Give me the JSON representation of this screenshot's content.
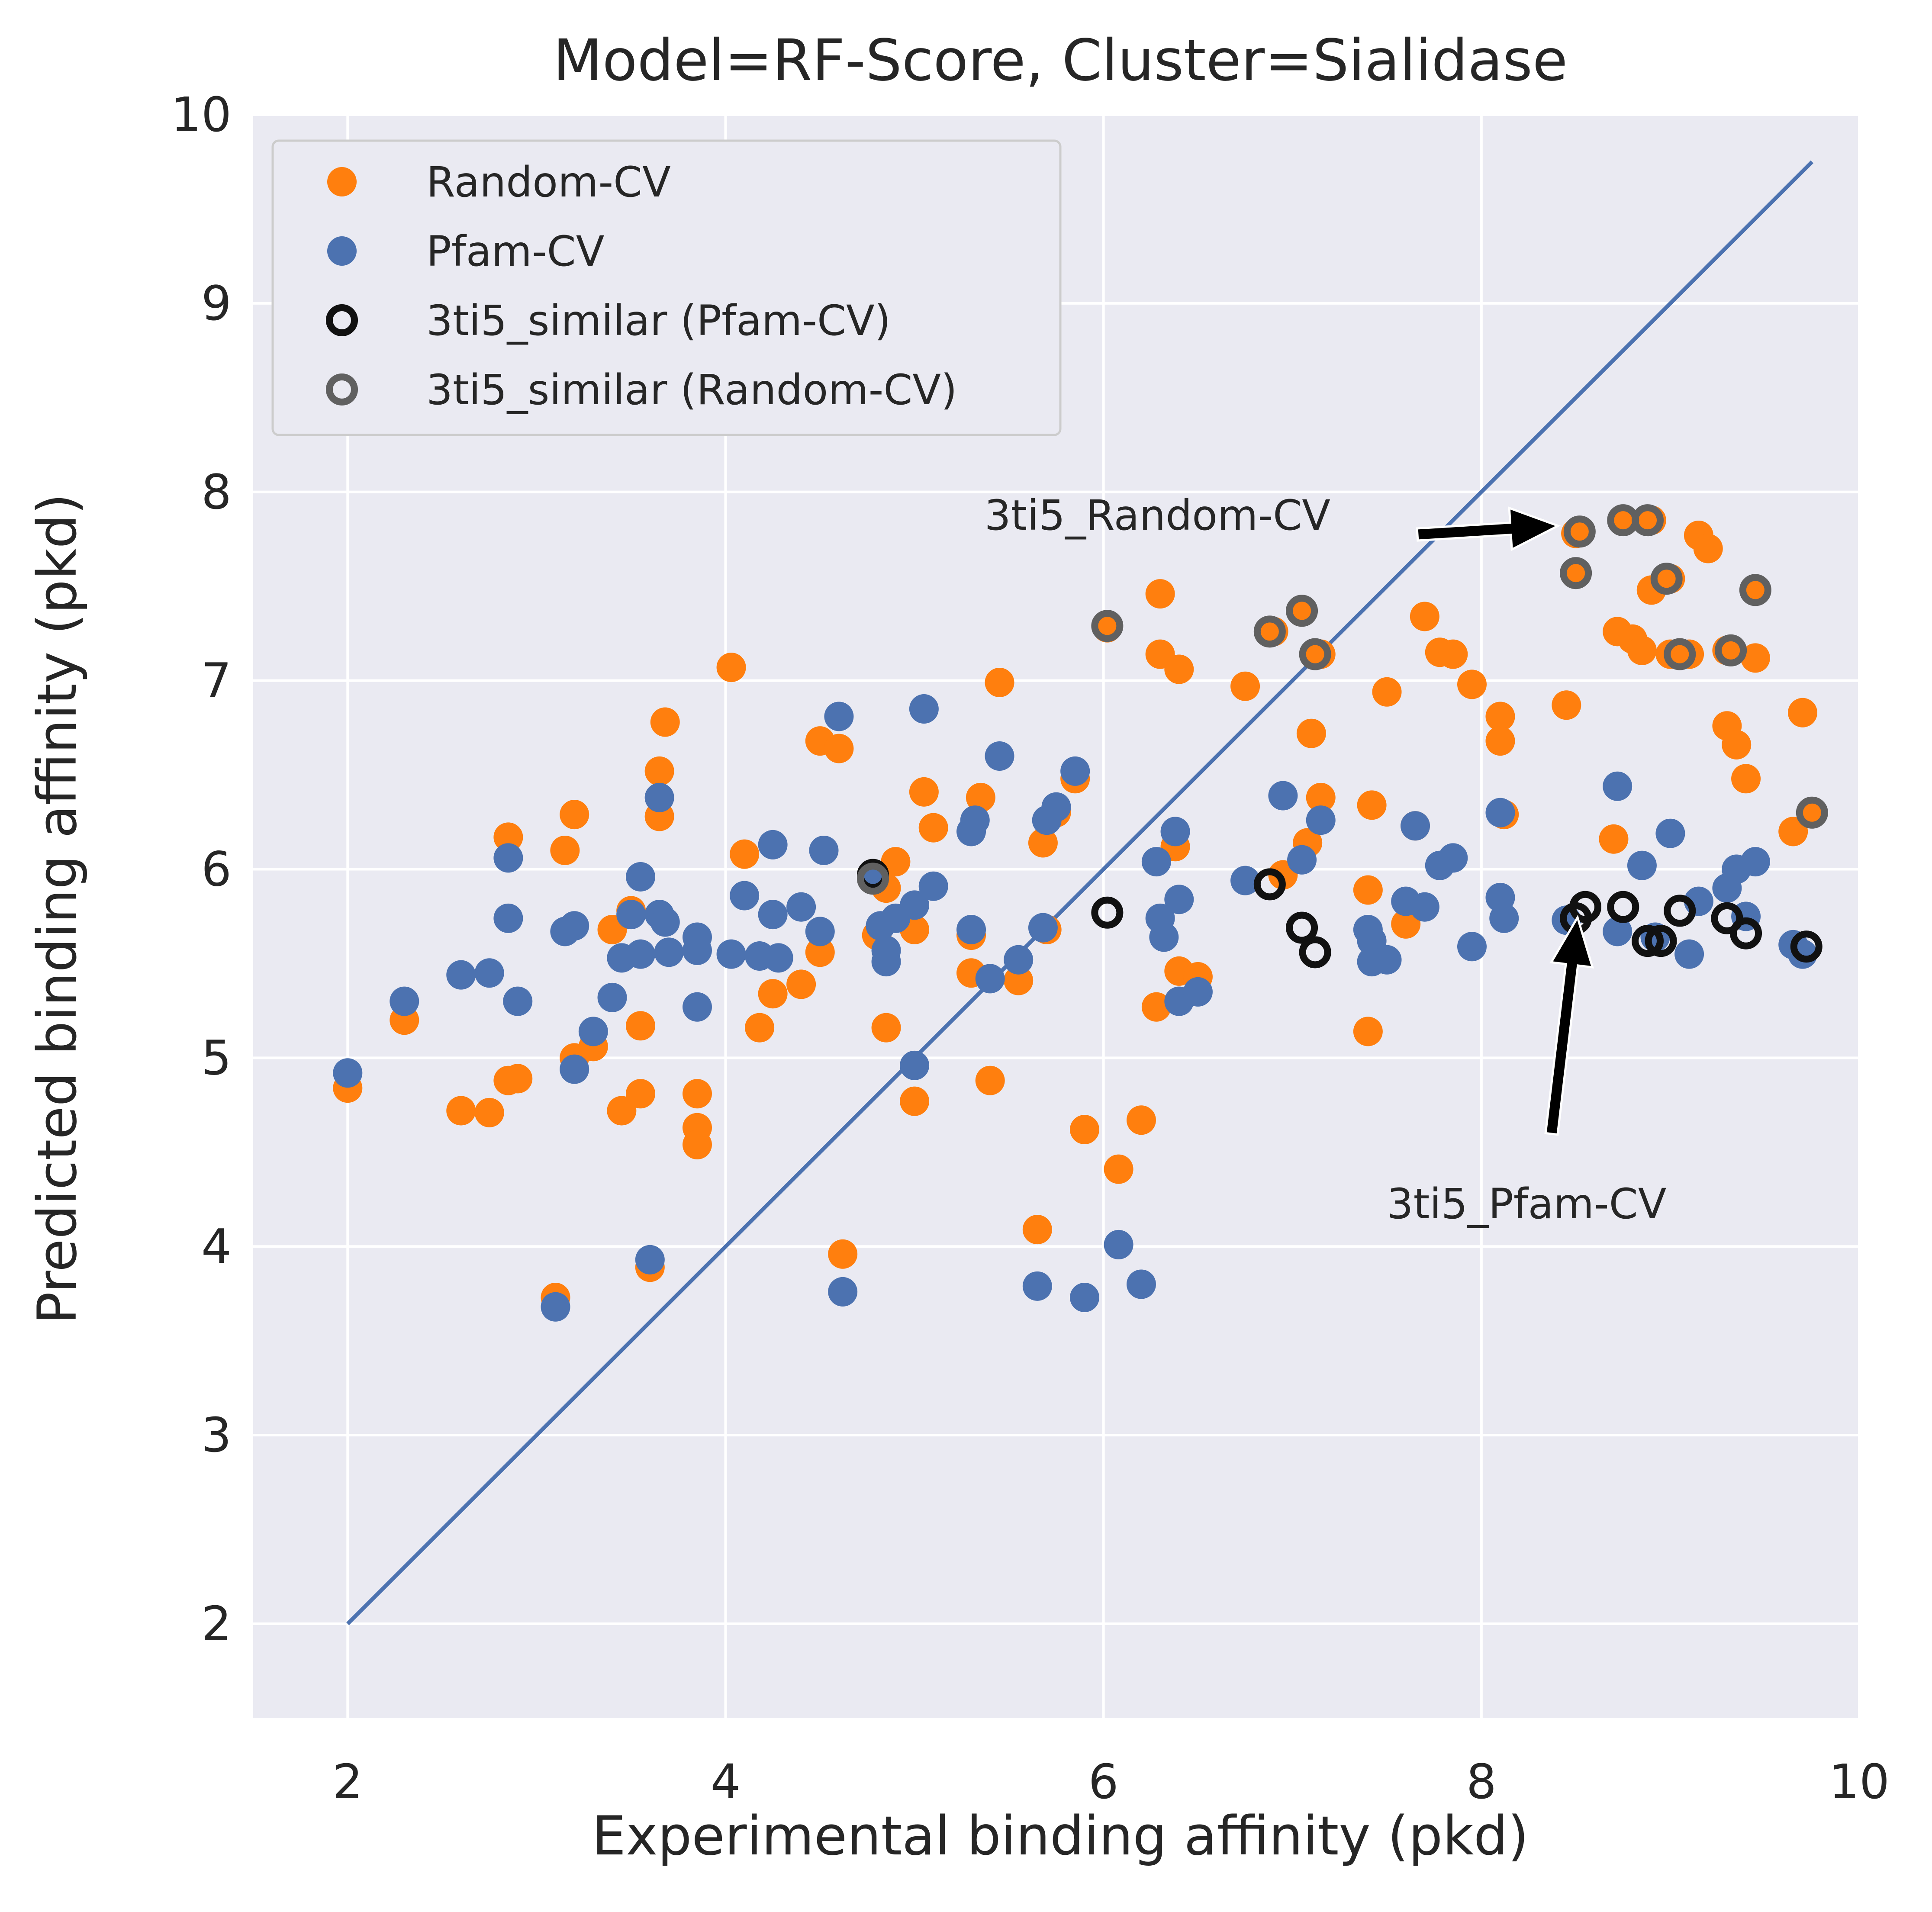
{
  "chart_data": {
    "type": "scatter",
    "title": "Model=RF-Score, Cluster=Sialidase",
    "xlabel": "Experimental binding affinity (pkd)",
    "ylabel": "Predicted binding affinity (pkd)",
    "xlim": [
      1.5,
      10.0
    ],
    "ylim": [
      1.5,
      10.0
    ],
    "xticks": [
      "2",
      "4",
      "6",
      "8",
      "10"
    ],
    "yticks": [
      "2",
      "3",
      "4",
      "5",
      "6",
      "7",
      "8",
      "9",
      "10"
    ],
    "grid": true,
    "background_color": "#eaeaf2",
    "legend_position": "upper-left",
    "legend": [
      {
        "label": "Random-CV",
        "marker": "filled-circle",
        "color": "#ff7f0e"
      },
      {
        "label": "Pfam-CV",
        "marker": "filled-circle",
        "color": "#4c72b0"
      },
      {
        "label": "3ti5_similar (Pfam-CV)",
        "marker": "open-circle",
        "color": "#111111"
      },
      {
        "label": "3ti5_similar (Random-CV)",
        "marker": "open-circle",
        "color": "#606060"
      }
    ],
    "reference_line": {
      "x": [
        2.0,
        9.75
      ],
      "y": [
        2.0,
        9.75
      ],
      "color": "#4c72b0"
    },
    "series": [
      {
        "name": "Random-CV",
        "color": "#ff7f0e",
        "points": [
          [
            2.0,
            4.84
          ],
          [
            2.3,
            5.2
          ],
          [
            2.6,
            4.72
          ],
          [
            2.75,
            4.71
          ],
          [
            2.85,
            6.17
          ],
          [
            2.85,
            4.88
          ],
          [
            2.9,
            4.89
          ],
          [
            3.1,
            3.73
          ],
          [
            3.15,
            6.1
          ],
          [
            3.2,
            6.29
          ],
          [
            3.2,
            5.0
          ],
          [
            3.3,
            5.06
          ],
          [
            3.4,
            5.68
          ],
          [
            3.45,
            4.72
          ],
          [
            3.5,
            5.78
          ],
          [
            3.55,
            5.17
          ],
          [
            3.55,
            4.81
          ],
          [
            3.6,
            3.89
          ],
          [
            3.65,
            6.28
          ],
          [
            3.65,
            6.52
          ],
          [
            3.68,
            6.78
          ],
          [
            3.85,
            4.81
          ],
          [
            3.85,
            4.63
          ],
          [
            3.85,
            4.54
          ],
          [
            4.03,
            7.07
          ],
          [
            4.1,
            6.08
          ],
          [
            4.18,
            5.16
          ],
          [
            4.25,
            5.34
          ],
          [
            4.4,
            5.39
          ],
          [
            4.5,
            5.56
          ],
          [
            4.5,
            6.68
          ],
          [
            4.6,
            6.64
          ],
          [
            4.62,
            3.96
          ],
          [
            4.8,
            5.65
          ],
          [
            4.85,
            5.16
          ],
          [
            4.85,
            5.9
          ],
          [
            4.9,
            6.04
          ],
          [
            5.0,
            5.68
          ],
          [
            5.0,
            4.77
          ],
          [
            5.05,
            6.41
          ],
          [
            5.1,
            6.22
          ],
          [
            5.3,
            5.65
          ],
          [
            5.3,
            5.45
          ],
          [
            5.35,
            6.38
          ],
          [
            5.4,
            4.88
          ],
          [
            5.45,
            6.99
          ],
          [
            5.55,
            5.41
          ],
          [
            5.65,
            4.09
          ],
          [
            5.68,
            6.14
          ],
          [
            5.7,
            5.68
          ],
          [
            5.75,
            6.3
          ],
          [
            5.85,
            6.48
          ],
          [
            5.9,
            4.62
          ],
          [
            6.02,
            7.28
          ],
          [
            6.08,
            4.41
          ],
          [
            6.2,
            4.67
          ],
          [
            6.28,
            5.27
          ],
          [
            6.3,
            7.14
          ],
          [
            6.3,
            7.46
          ],
          [
            6.38,
            6.12
          ],
          [
            6.4,
            7.06
          ],
          [
            6.4,
            5.46
          ],
          [
            6.5,
            5.43
          ],
          [
            6.75,
            6.97
          ],
          [
            6.9,
            7.26
          ],
          [
            6.95,
            5.97
          ],
          [
            7.05,
            7.37
          ],
          [
            7.08,
            6.14
          ],
          [
            7.1,
            6.72
          ],
          [
            7.15,
            7.14
          ],
          [
            7.15,
            6.38
          ],
          [
            7.4,
            5.89
          ],
          [
            7.4,
            5.14
          ],
          [
            7.42,
            6.34
          ],
          [
            7.5,
            6.94
          ],
          [
            7.6,
            5.71
          ],
          [
            7.65,
            6.23
          ],
          [
            7.7,
            7.34
          ],
          [
            7.78,
            7.15
          ],
          [
            7.85,
            7.14
          ],
          [
            7.95,
            6.98
          ],
          [
            8.1,
            6.81
          ],
          [
            8.1,
            6.68
          ],
          [
            8.12,
            6.29
          ],
          [
            8.45,
            6.87
          ],
          [
            8.5,
            7.57
          ],
          [
            8.5,
            7.78
          ],
          [
            8.7,
            6.16
          ],
          [
            8.72,
            7.26
          ],
          [
            8.75,
            7.85
          ],
          [
            8.8,
            7.22
          ],
          [
            8.85,
            7.16
          ],
          [
            8.9,
            7.85
          ],
          [
            8.9,
            7.48
          ],
          [
            9.0,
            7.54
          ],
          [
            9.0,
            7.14
          ],
          [
            9.1,
            7.14
          ],
          [
            9.15,
            7.77
          ],
          [
            9.2,
            7.7
          ],
          [
            9.3,
            6.76
          ],
          [
            9.3,
            7.16
          ],
          [
            9.35,
            6.66
          ],
          [
            9.4,
            6.48
          ],
          [
            9.45,
            7.48
          ],
          [
            9.45,
            7.12
          ],
          [
            9.65,
            6.2
          ],
          [
            9.7,
            6.83
          ],
          [
            9.75,
            6.3
          ]
        ]
      },
      {
        "name": "Pfam-CV",
        "color": "#4c72b0",
        "points": [
          [
            2.0,
            4.92
          ],
          [
            2.3,
            5.3
          ],
          [
            2.6,
            5.44
          ],
          [
            2.75,
            5.45
          ],
          [
            2.85,
            6.06
          ],
          [
            2.85,
            5.74
          ],
          [
            2.9,
            5.3
          ],
          [
            3.1,
            3.68
          ],
          [
            3.15,
            5.67
          ],
          [
            3.2,
            5.7
          ],
          [
            3.2,
            4.94
          ],
          [
            3.3,
            5.14
          ],
          [
            3.4,
            5.32
          ],
          [
            3.45,
            5.53
          ],
          [
            3.5,
            5.76
          ],
          [
            3.55,
            5.96
          ],
          [
            3.55,
            5.55
          ],
          [
            3.6,
            3.93
          ],
          [
            3.65,
            6.38
          ],
          [
            3.65,
            5.76
          ],
          [
            3.68,
            5.72
          ],
          [
            3.7,
            5.56
          ],
          [
            3.85,
            5.64
          ],
          [
            3.85,
            5.57
          ],
          [
            3.85,
            5.27
          ],
          [
            4.03,
            5.55
          ],
          [
            4.1,
            5.86
          ],
          [
            4.18,
            5.54
          ],
          [
            4.25,
            5.76
          ],
          [
            4.25,
            6.13
          ],
          [
            4.28,
            5.53
          ],
          [
            4.4,
            5.8
          ],
          [
            4.5,
            5.67
          ],
          [
            4.52,
            6.1
          ],
          [
            4.6,
            6.81
          ],
          [
            4.62,
            3.76
          ],
          [
            4.78,
            5.97
          ],
          [
            4.82,
            5.7
          ],
          [
            4.85,
            5.51
          ],
          [
            4.85,
            5.57
          ],
          [
            4.9,
            5.74
          ],
          [
            5.0,
            5.81
          ],
          [
            5.0,
            4.96
          ],
          [
            5.05,
            6.85
          ],
          [
            5.1,
            5.91
          ],
          [
            5.3,
            6.2
          ],
          [
            5.3,
            5.68
          ],
          [
            5.32,
            6.26
          ],
          [
            5.4,
            5.42
          ],
          [
            5.45,
            6.6
          ],
          [
            5.55,
            5.52
          ],
          [
            5.65,
            3.79
          ],
          [
            5.68,
            5.69
          ],
          [
            5.7,
            6.26
          ],
          [
            5.75,
            6.33
          ],
          [
            5.85,
            6.52
          ],
          [
            5.9,
            3.73
          ],
          [
            6.08,
            4.01
          ],
          [
            6.2,
            3.8
          ],
          [
            6.28,
            6.04
          ],
          [
            6.3,
            5.74
          ],
          [
            6.32,
            5.64
          ],
          [
            6.38,
            6.2
          ],
          [
            6.4,
            5.84
          ],
          [
            6.4,
            5.3
          ],
          [
            6.5,
            5.35
          ],
          [
            6.75,
            5.94
          ],
          [
            6.95,
            6.39
          ],
          [
            7.05,
            6.05
          ],
          [
            7.15,
            6.26
          ],
          [
            7.4,
            5.68
          ],
          [
            7.42,
            5.62
          ],
          [
            7.42,
            5.51
          ],
          [
            7.5,
            5.52
          ],
          [
            7.6,
            5.83
          ],
          [
            7.65,
            6.23
          ],
          [
            7.7,
            5.8
          ],
          [
            7.78,
            6.02
          ],
          [
            7.85,
            6.06
          ],
          [
            7.95,
            5.59
          ],
          [
            8.1,
            6.3
          ],
          [
            8.1,
            5.85
          ],
          [
            8.12,
            5.74
          ],
          [
            8.45,
            5.73
          ],
          [
            8.72,
            6.44
          ],
          [
            8.72,
            5.67
          ],
          [
            8.85,
            6.02
          ],
          [
            8.92,
            5.64
          ],
          [
            9.0,
            6.19
          ],
          [
            9.1,
            5.55
          ],
          [
            9.15,
            5.83
          ],
          [
            9.3,
            5.9
          ],
          [
            9.35,
            6.0
          ],
          [
            9.4,
            5.75
          ],
          [
            9.45,
            6.04
          ],
          [
            9.65,
            5.6
          ],
          [
            9.7,
            5.55
          ]
        ]
      },
      {
        "name": "3ti5_similar (Pfam-CV)",
        "color": "#111111",
        "points": [
          [
            4.78,
            5.97
          ],
          [
            6.02,
            5.77
          ],
          [
            6.88,
            5.92
          ],
          [
            7.05,
            5.69
          ],
          [
            7.12,
            5.56
          ],
          [
            8.5,
            5.74
          ],
          [
            8.55,
            5.8
          ],
          [
            8.75,
            5.8
          ],
          [
            8.88,
            5.62
          ],
          [
            8.95,
            5.62
          ],
          [
            9.05,
            5.78
          ],
          [
            9.3,
            5.74
          ],
          [
            9.4,
            5.66
          ],
          [
            9.72,
            5.59
          ]
        ]
      },
      {
        "name": "3ti5_similar (Random-CV)",
        "color": "#606060",
        "points": [
          [
            4.78,
            5.95
          ],
          [
            6.02,
            7.29
          ],
          [
            6.88,
            7.26
          ],
          [
            7.05,
            7.37
          ],
          [
            7.12,
            7.14
          ],
          [
            8.5,
            7.57
          ],
          [
            8.52,
            7.79
          ],
          [
            8.75,
            7.85
          ],
          [
            8.88,
            7.85
          ],
          [
            8.98,
            7.54
          ],
          [
            9.05,
            7.14
          ],
          [
            9.32,
            7.16
          ],
          [
            9.45,
            7.48
          ],
          [
            9.75,
            6.3
          ]
        ]
      }
    ],
    "annotations": [
      {
        "text": "3ti5_Random-CV",
        "text_xy": [
          5.37,
          7.8
        ],
        "arrow_to": [
          8.48,
          7.8
        ]
      },
      {
        "text": "3ti5_Pfam-CV",
        "text_xy": [
          7.5,
          4.15
        ],
        "arrow_to": [
          8.52,
          5.68
        ]
      }
    ]
  }
}
